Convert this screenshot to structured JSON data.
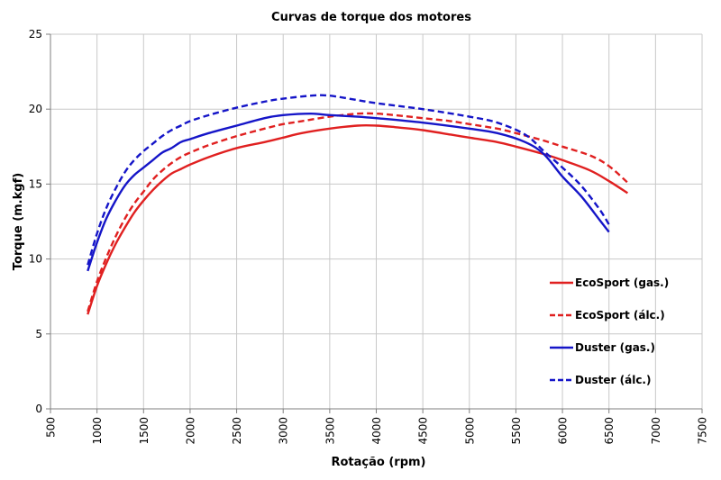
{
  "chart_data": {
    "type": "line",
    "title": "Curvas de torque dos motores",
    "xlabel": "Rotação (rpm)",
    "ylabel": "Torque (m.kgf)",
    "xlim": [
      500,
      7500
    ],
    "ylim": [
      0,
      25
    ],
    "x_ticks": [
      500,
      1000,
      1500,
      2000,
      2500,
      3000,
      3500,
      4000,
      4500,
      5000,
      5500,
      6000,
      6500,
      7000,
      7500
    ],
    "y_ticks": [
      0,
      5,
      10,
      15,
      20,
      25
    ],
    "grid": true,
    "legend_position": "bottom-right",
    "series": [
      {
        "name": "EcoSport (gas.)",
        "color": "#e02020",
        "dash": "solid",
        "x": [
          900,
          1000,
          1100,
          1200,
          1300,
          1400,
          1500,
          1600,
          1700,
          1800,
          1900,
          2000,
          2200,
          2500,
          2800,
          3000,
          3200,
          3500,
          3800,
          4000,
          4200,
          4500,
          4800,
          5000,
          5300,
          5500,
          5800,
          6000,
          6300,
          6500,
          6700
        ],
        "y": [
          6.3,
          8.2,
          9.7,
          11.0,
          12.1,
          13.1,
          13.9,
          14.6,
          15.2,
          15.7,
          16.0,
          16.3,
          16.8,
          17.4,
          17.8,
          18.1,
          18.4,
          18.7,
          18.9,
          18.9,
          18.8,
          18.6,
          18.3,
          18.1,
          17.8,
          17.5,
          17.0,
          16.6,
          15.9,
          15.2,
          14.4
        ]
      },
      {
        "name": "EcoSport (álc.)",
        "color": "#e02020",
        "dash": "dashed",
        "x": [
          900,
          1000,
          1100,
          1200,
          1300,
          1400,
          1500,
          1600,
          1700,
          1800,
          1900,
          2000,
          2200,
          2500,
          2800,
          3000,
          3200,
          3500,
          3800,
          4000,
          4200,
          4500,
          4800,
          5000,
          5300,
          5500,
          5800,
          6000,
          6300,
          6500,
          6700
        ],
        "y": [
          6.5,
          8.5,
          10.1,
          11.5,
          12.7,
          13.7,
          14.5,
          15.3,
          15.9,
          16.4,
          16.8,
          17.1,
          17.6,
          18.2,
          18.7,
          19.0,
          19.2,
          19.5,
          19.7,
          19.7,
          19.6,
          19.4,
          19.2,
          19.0,
          18.7,
          18.4,
          17.9,
          17.5,
          16.9,
          16.2,
          15.1
        ]
      },
      {
        "name": "Duster (gas.)",
        "color": "#1515c8",
        "dash": "solid",
        "x": [
          900,
          1000,
          1100,
          1200,
          1300,
          1400,
          1500,
          1600,
          1700,
          1800,
          1900,
          2000,
          2200,
          2500,
          2800,
          3000,
          3300,
          3500,
          3800,
          4000,
          4500,
          5000,
          5300,
          5600,
          5800,
          6000,
          6200,
          6400,
          6500
        ],
        "y": [
          9.2,
          11.1,
          12.7,
          13.9,
          14.9,
          15.6,
          16.1,
          16.6,
          17.1,
          17.4,
          17.8,
          18.0,
          18.4,
          18.9,
          19.4,
          19.6,
          19.7,
          19.6,
          19.5,
          19.4,
          19.1,
          18.7,
          18.4,
          17.8,
          17.0,
          15.5,
          14.2,
          12.6,
          11.8
        ]
      },
      {
        "name": "Duster (álc.)",
        "color": "#1515c8",
        "dash": "dashed",
        "x": [
          900,
          1000,
          1100,
          1200,
          1300,
          1400,
          1500,
          1600,
          1700,
          1800,
          1900,
          2000,
          2200,
          2500,
          2800,
          3000,
          3300,
          3500,
          3800,
          4000,
          4500,
          5000,
          5300,
          5600,
          5800,
          6000,
          6200,
          6400,
          6500
        ],
        "y": [
          9.6,
          11.7,
          13.4,
          14.7,
          15.8,
          16.6,
          17.2,
          17.7,
          18.2,
          18.6,
          18.9,
          19.2,
          19.6,
          20.1,
          20.5,
          20.7,
          20.9,
          20.9,
          20.6,
          20.4,
          20.0,
          19.5,
          19.1,
          18.3,
          17.2,
          16.1,
          14.9,
          13.3,
          12.3
        ]
      }
    ]
  }
}
